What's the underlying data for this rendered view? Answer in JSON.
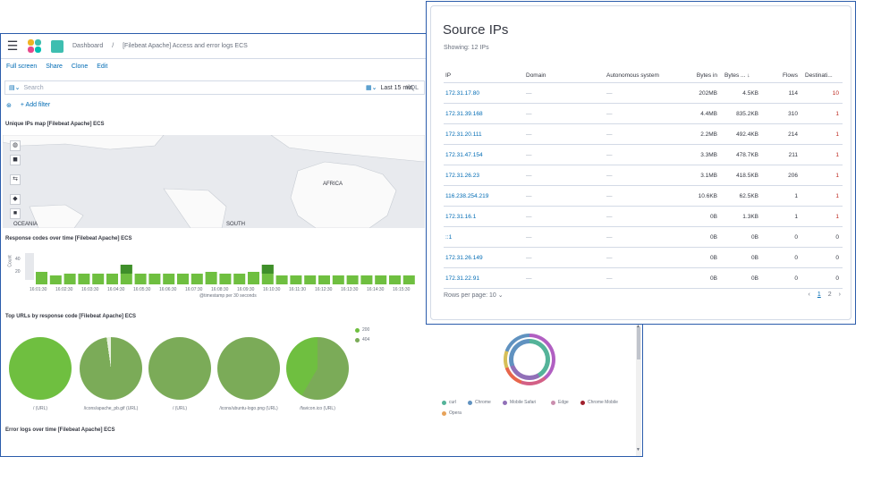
{
  "dashboard": {
    "breadcrumb_root": "Dashboard",
    "breadcrumb_title": "[Filebeat Apache] Access and error logs ECS",
    "menu": [
      "Full screen",
      "Share",
      "Clone",
      "Edit"
    ],
    "search_placeholder": "Search",
    "kql_label": "KQL",
    "time_label": "Last 15 min",
    "add_filter": "+ Add filter",
    "map_panel_title": "Unique IPs map [Filebeat Apache] ECS",
    "map_labels": {
      "africa": "AFRICA",
      "oceania": "OCEANIA",
      "south": "SOUTH"
    },
    "response_panel_title": "Response codes over time [Filebeat Apache] ECS",
    "response_y_label": "Count",
    "response_y_ticks": [
      "40",
      "20"
    ],
    "response_x_label": "@timestamp per 30 seconds",
    "response_x_ticks": [
      "16:01:30",
      "16:02:30",
      "16:03:30",
      "16:04:30",
      "16:05:30",
      "16:06:30",
      "16:07:30",
      "16:08:30",
      "16:09:30",
      "16:10:30",
      "16:11:30",
      "16:12:30",
      "16:13:30",
      "16:14:30",
      "16:15:30"
    ],
    "top_urls_panel_title": "Top URLs by response code [Filebeat Apache] ECS",
    "pie_labels": [
      "/ (URL)",
      "/icons/apache_pb.gif (URL)",
      "/ (URL)",
      "/icons/ubuntu-logo.png (URL)",
      "/favicon.ico (URL)"
    ],
    "pie_legend": [
      "200",
      "404"
    ],
    "errors_panel_title": "Error logs over time [Filebeat Apache] ECS",
    "browser_legend": [
      "curl",
      "Chrome",
      "Mobile Safari",
      "Edge",
      "Chrome Mobile",
      "Opera"
    ],
    "colors": {
      "green_dark": "#6fbf40",
      "green_light": "#7bab58",
      "accent_link": "#006bb4"
    }
  },
  "source_ips": {
    "title": "Source IPs",
    "subtitle": "Showing: 12 IPs",
    "columns": [
      "IP",
      "Domain",
      "Autonomous system",
      "Bytes in",
      "Bytes ...",
      "Flows",
      "Destinati..."
    ],
    "rows": [
      {
        "ip": "172.31.17.80",
        "domain": "—",
        "as": "—",
        "bytes_in": "202MB",
        "bytes_out": "4.5KB",
        "flows": "114",
        "dest": "10"
      },
      {
        "ip": "172.31.39.168",
        "domain": "—",
        "as": "—",
        "bytes_in": "4.4MB",
        "bytes_out": "835.2KB",
        "flows": "310",
        "dest": "1"
      },
      {
        "ip": "172.31.20.111",
        "domain": "—",
        "as": "—",
        "bytes_in": "2.2MB",
        "bytes_out": "492.4KB",
        "flows": "214",
        "dest": "1"
      },
      {
        "ip": "172.31.47.154",
        "domain": "—",
        "as": "—",
        "bytes_in": "3.3MB",
        "bytes_out": "478.7KB",
        "flows": "211",
        "dest": "1"
      },
      {
        "ip": "172.31.26.23",
        "domain": "—",
        "as": "—",
        "bytes_in": "3.1MB",
        "bytes_out": "418.5KB",
        "flows": "206",
        "dest": "1"
      },
      {
        "ip": "116.238.254.219",
        "domain": "—",
        "as": "—",
        "bytes_in": "10.6KB",
        "bytes_out": "62.5KB",
        "flows": "1",
        "dest": "1"
      },
      {
        "ip": "172.31.16.1",
        "domain": "—",
        "as": "—",
        "bytes_in": "0B",
        "bytes_out": "1.3KB",
        "flows": "1",
        "dest": "1"
      },
      {
        "ip": "::1",
        "domain": "—",
        "as": "—",
        "bytes_in": "0B",
        "bytes_out": "0B",
        "flows": "0",
        "dest": "0"
      },
      {
        "ip": "172.31.26.149",
        "domain": "—",
        "as": "—",
        "bytes_in": "0B",
        "bytes_out": "0B",
        "flows": "0",
        "dest": "0"
      },
      {
        "ip": "172.31.22.91",
        "domain": "—",
        "as": "—",
        "bytes_in": "0B",
        "bytes_out": "0B",
        "flows": "0",
        "dest": "0"
      }
    ],
    "rows_per_page": "Rows per page: 10",
    "pages": [
      "1",
      "2"
    ]
  }
}
